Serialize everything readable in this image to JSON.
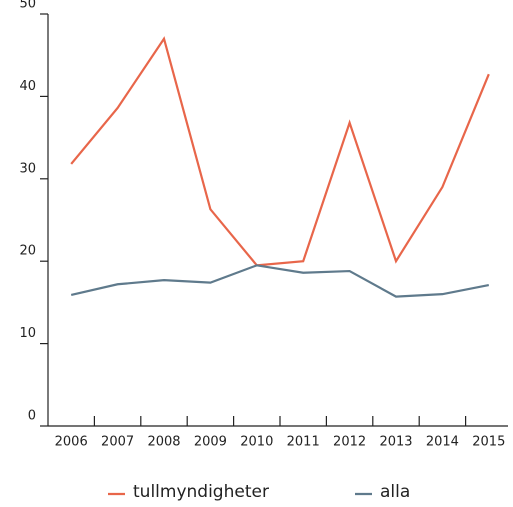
{
  "chart_data": {
    "type": "line",
    "categories": [
      "2006",
      "2007",
      "2008",
      "2009",
      "2010",
      "2011",
      "2012",
      "2013",
      "2014",
      "2015"
    ],
    "series": [
      {
        "name": "tullmyndigheter",
        "color": "#e8664a",
        "values": [
          31.8,
          38.6,
          47.0,
          26.3,
          19.5,
          20.0,
          36.8,
          20.0,
          29.0,
          42.7
        ]
      },
      {
        "name": "alla",
        "color": "#5f7a8c",
        "values": [
          15.9,
          17.2,
          17.7,
          17.4,
          19.5,
          18.6,
          18.8,
          15.7,
          16.0,
          17.1
        ]
      }
    ],
    "ylim": [
      0,
      50
    ],
    "yticks": [
      0,
      10,
      20,
      30,
      40,
      50
    ],
    "grid": false,
    "legend": "bottom"
  }
}
